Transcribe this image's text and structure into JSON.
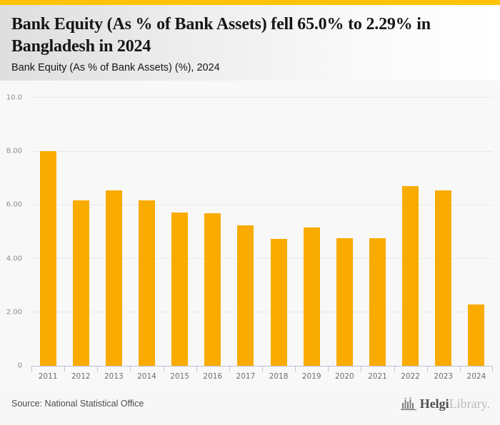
{
  "accent": {
    "topbar_color": "#fdc30a",
    "bar_color": "#f9ab00",
    "axis_color": "#b9c3d4",
    "grid_color": "#e9e9e9"
  },
  "header": {
    "title": "Bank Equity (As % of Bank Assets) fell 65.0% to 2.29% in Bangladesh in 2024",
    "subtitle": "Bank Equity (As % of Bank Assets) (%), 2024"
  },
  "chart_data": {
    "type": "bar",
    "title": "Bank Equity (As % of Bank Assets) fell 65.0% to 2.29% in Bangladesh in 2024",
    "subtitle": "Bank Equity (As % of Bank Assets) (%), 2024",
    "categories": [
      "2011",
      "2012",
      "2013",
      "2014",
      "2015",
      "2016",
      "2017",
      "2018",
      "2019",
      "2020",
      "2021",
      "2022",
      "2023",
      "2024"
    ],
    "values": [
      8.0,
      6.18,
      6.55,
      6.18,
      5.72,
      5.7,
      5.24,
      4.74,
      5.16,
      4.77,
      4.77,
      6.71,
      6.54,
      2.29
    ],
    "xlabel": "",
    "ylabel": "",
    "ylim": [
      0,
      10
    ],
    "yticks": [
      {
        "label": "10.0",
        "value": 10
      },
      {
        "label": "8.00",
        "value": 8
      },
      {
        "label": "6.00",
        "value": 6
      },
      {
        "label": "4.00",
        "value": 4
      },
      {
        "label": "2.00",
        "value": 2
      },
      {
        "label": "0",
        "value": 0
      }
    ],
    "grid": "horizontal",
    "legend": "none"
  },
  "footer": {
    "source": "Source: National Statistical Office",
    "logo_primary": "Helgi",
    "logo_secondary": "Library."
  }
}
